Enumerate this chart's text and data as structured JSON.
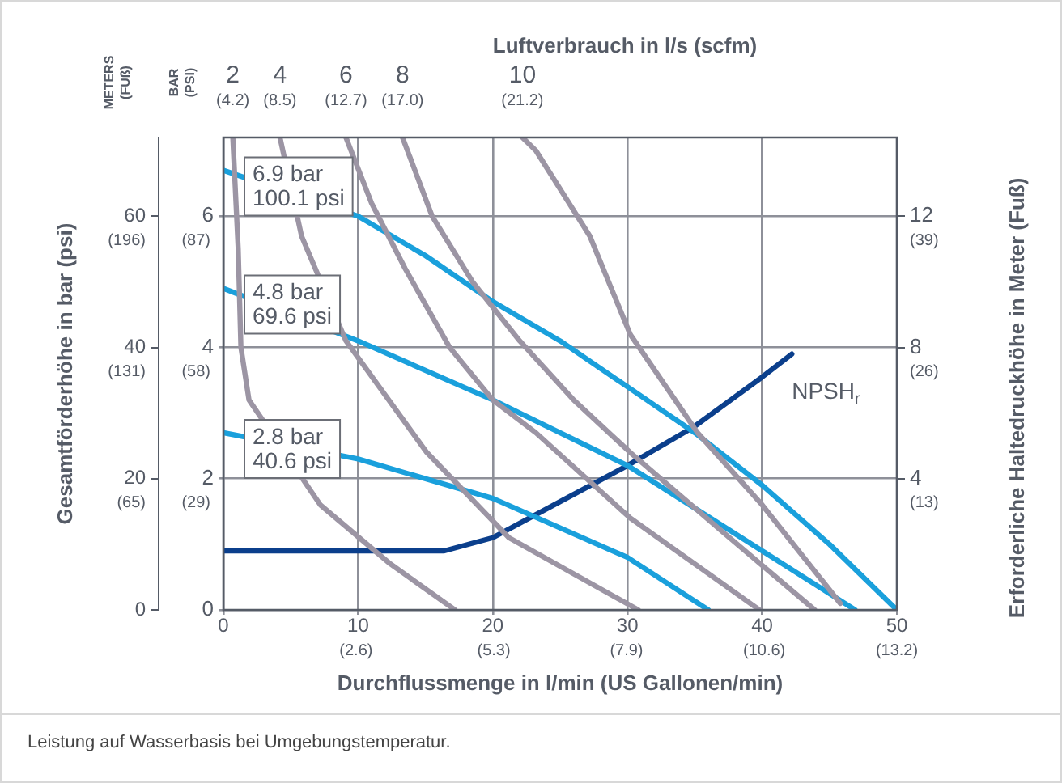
{
  "chart_data": {
    "type": "line",
    "title": "Luftverbrauch in l/s (scfm)",
    "ylabel": "Gesamtförderhöhe in bar (psi)",
    "xlabel": "Durchflussmenge in l/min (US Gallonen/min)",
    "y2label": "Erforderliche Haltedruckhöhe in Meter (Fuß)",
    "annotations": [
      "METERS\n(FUß)",
      "BAR\n(PSI)",
      "Leistung auf Wasserbasis bei Umgebungstemperatur.",
      "(65)",
      "(131)",
      "(196)",
      "(29)",
      "(58)",
      "(87)",
      "(13)",
      "(26)",
      "(39)"
    ],
    "xlim": [
      0,
      50
    ],
    "xticks": [
      0,
      10,
      20,
      30,
      40,
      50
    ],
    "x2lim": [
      0,
      13.2
    ],
    "x2ticks": [
      {
        "value": 2.6,
        "label": "(2.6)"
      },
      {
        "value": 5.3,
        "label": "(5.3)"
      },
      {
        "value": 7.9,
        "label": "(7.9)"
      },
      {
        "value": 10.6,
        "label": "(10.6)"
      },
      {
        "value": 13.2,
        "label": "(13.2)"
      }
    ],
    "ylim": [
      0,
      7.2
    ],
    "yticks": [
      0,
      2,
      4,
      6
    ],
    "y2lim": [
      0,
      14.4
    ],
    "y2ticks": [
      4,
      8,
      12
    ],
    "y3lim": [
      0,
      72
    ],
    "y3ticks": [
      0,
      20,
      40,
      60
    ],
    "grid": true,
    "legend": false,
    "marker": "none",
    "line_style": "solid",
    "series": [
      {
        "name": "2\n(4.2)",
        "color": "#9c95a4",
        "x": [
          0.7,
          1.1,
          1.3,
          1.9,
          7.2,
          12.4,
          17.2
        ],
        "values": [
          7.2,
          5.5,
          4.0,
          3.2,
          1.6,
          0.7,
          0
        ]
      },
      {
        "name": "4\n(8.5)",
        "color": "#9c95a4",
        "x": [
          4.2,
          5.8,
          9.1,
          15.1,
          21.2,
          30.8
        ],
        "values": [
          7.2,
          5.7,
          4.1,
          2.4,
          1.1,
          0
        ]
      },
      {
        "name": "6\n(12.7)",
        "color": "#9c95a4",
        "x": [
          9.1,
          11,
          13.5,
          16.8,
          20,
          23.2,
          30.2,
          39.8
        ],
        "values": [
          7.2,
          6.2,
          5.2,
          4.0,
          3.2,
          2.7,
          1.4,
          0
        ]
      },
      {
        "name": "8\n(17.0)",
        "color": "#9c95a4",
        "x": [
          13.3,
          15.5,
          18.5,
          22,
          26,
          30.2,
          37,
          43.9
        ],
        "values": [
          7.2,
          6.0,
          5.0,
          4.1,
          3.2,
          2.4,
          1.2,
          0
        ]
      },
      {
        "name": "10\n(21.2)",
        "color": "#9c95a4",
        "x": [
          22.2,
          23.2,
          27.2,
          30.2,
          35.2,
          40,
          45.8
        ],
        "values": [
          7.2,
          7.0,
          5.7,
          4.2,
          2.7,
          1.6,
          0.1
        ]
      },
      {
        "name": "6.9 bar\n100.1 psi",
        "color": "#1aa0dc",
        "x": [
          0,
          10,
          15,
          20,
          25,
          30,
          35,
          40,
          45,
          50
        ],
        "values": [
          6.7,
          6.0,
          5.4,
          4.7,
          4.1,
          3.4,
          2.7,
          1.9,
          1.0,
          0
        ]
      },
      {
        "name": "4.8 bar\n69.6 psi",
        "color": "#1aa0dc",
        "x": [
          0,
          10,
          20,
          30,
          40,
          46.9
        ],
        "values": [
          4.9,
          4.1,
          3.2,
          2.2,
          0.9,
          0
        ]
      },
      {
        "name": "2.8 bar\n40.6 psi",
        "color": "#1aa0dc",
        "x": [
          0,
          10,
          20,
          30,
          36
        ],
        "values": [
          2.7,
          2.3,
          1.7,
          0.8,
          0
        ]
      },
      {
        "name": "NPSH$_{r}$",
        "axis": "y2",
        "color": "#0b3f8c",
        "x": [
          0,
          16.4,
          20,
          25,
          30,
          35,
          40,
          42.2
        ],
        "values": [
          1.8,
          1.8,
          2.2,
          3.3,
          4.4,
          5.6,
          7.1,
          7.8
        ]
      }
    ]
  }
}
